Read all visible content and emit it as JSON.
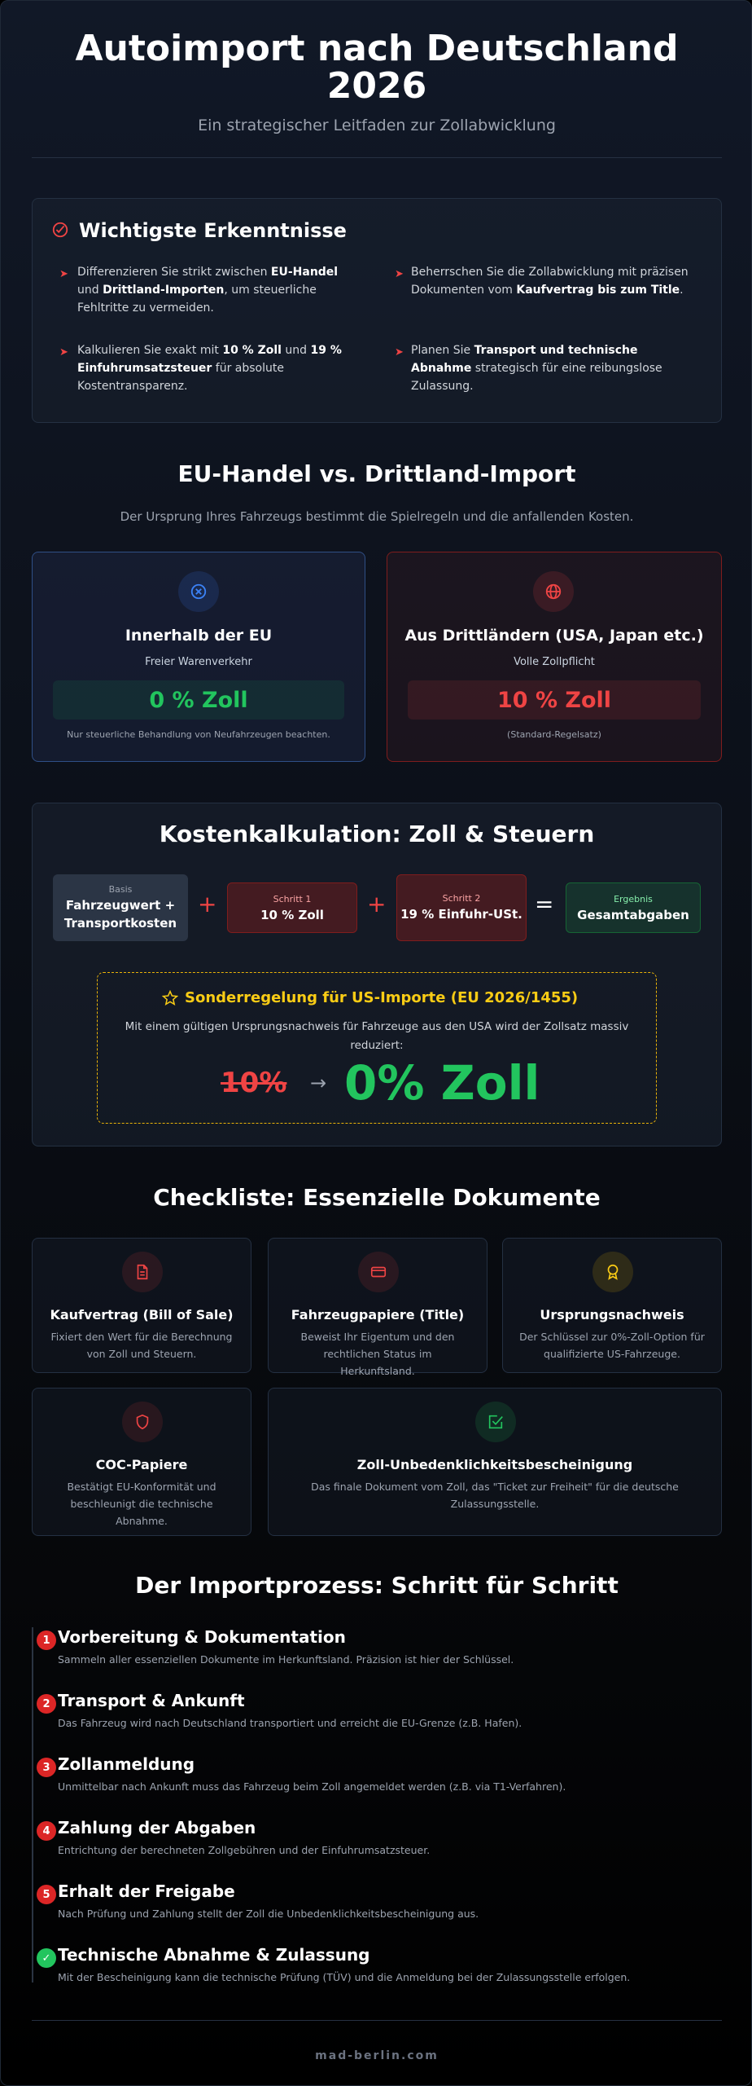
{
  "header": {
    "title_line1": "Autoimport nach Deutschland",
    "title_line2": "2026",
    "subtitle": "Ein strategischer Leitfaden zur Zollabwicklung"
  },
  "key_findings": {
    "title": "Wichtigste Erkenntnisse",
    "items": [
      {
        "pre": "Differenzieren Sie strikt zwischen ",
        "b1": "EU-Handel",
        "mid": " und ",
        "b2": "Drittland-Importen",
        "post": ", um steuerliche Fehltritte zu vermeiden."
      },
      {
        "pre": "Beherrschen Sie die Zollabwicklung mit präzisen Dokumenten vom ",
        "b1": "Kaufvertrag bis zum Title",
        "mid": "",
        "b2": "",
        "post": "."
      },
      {
        "pre": "Kalkulieren Sie exakt mit ",
        "b1": "10 % Zoll",
        "mid": " und ",
        "b2": "19 % Einfuhrumsatzsteuer",
        "post": " für absolute Kostentransparenz."
      },
      {
        "pre": "Planen Sie ",
        "b1": "Transport und technische Abnahme",
        "mid": "",
        "b2": "",
        "post": " strategisch für eine reibungslose Zulassung."
      }
    ]
  },
  "comparison": {
    "title": "EU-Handel vs. Drittland-Import",
    "subtitle": "Der Ursprung Ihres Fahrzeugs bestimmt die Spielregeln und die anfallenden Kosten.",
    "eu": {
      "title": "Innerhalb der EU",
      "sub": "Freier Warenverkehr",
      "rate": "0 % Zoll",
      "note": "Nur steuerliche Behandlung von Neufahrzeugen beachten.",
      "icon": "x-circle-icon"
    },
    "third": {
      "title": "Aus Drittländern (USA, Japan etc.)",
      "sub": "Volle Zollpflicht",
      "rate": "10 % Zoll",
      "note": "(Standard-Regelsatz)",
      "icon": "globe-icon"
    }
  },
  "calculation": {
    "title": "Kostenkalkulation: Zoll & Steuern",
    "base": {
      "label": "Basis",
      "value": "Fahrzeugwert + Transportkosten"
    },
    "step1": {
      "label": "Schritt 1",
      "value": "10 % Zoll"
    },
    "step2": {
      "label": "Schritt 2",
      "value": "19 % Einfuhr-USt."
    },
    "result": {
      "label": "Ergebnis",
      "value": "Gesamtabgaben"
    },
    "plus": "+",
    "equals": "=",
    "special": {
      "title": "Sonderregelung für US-Importe (EU 2026/1455)",
      "text": "Mit einem gültigen Ursprungsnachweis für Fahrzeuge aus den USA wird der Zollsatz massiv reduziert:",
      "old": "10%",
      "arrow": "→",
      "new": "0% Zoll"
    }
  },
  "checklist": {
    "title": "Checkliste: Essenzielle Dokumente",
    "docs": [
      {
        "title": "Kaufvertrag (Bill of Sale)",
        "desc": "Fixiert den Wert für die Berechnung von Zoll und Steuern.",
        "icon": "document-icon"
      },
      {
        "title": "Fahrzeugpapiere (Title)",
        "desc": "Beweist Ihr Eigentum und den rechtlichen Status im Herkunftsland.",
        "icon": "card-icon"
      },
      {
        "title": "Ursprungsnachweis",
        "desc": "Der Schlüssel zur 0%-Zoll-Option für qualifizierte US-Fahrzeuge.",
        "icon": "award-icon"
      },
      {
        "title": "COC-Papiere",
        "desc": "Bestätigt EU-Konformität und beschleunigt die technische Abnahme.",
        "icon": "shield-icon"
      },
      {
        "title": "Zoll-Unbedenklichkeitsbescheinigung",
        "desc": "Das finale Dokument vom Zoll, das \"Ticket zur Freiheit\" für die deutsche Zulassungsstelle.",
        "icon": "check-square-icon"
      }
    ]
  },
  "process": {
    "title": "Der Importprozess: Schritt für Schritt",
    "steps": [
      {
        "num": "1",
        "title": "Vorbereitung & Dokumentation",
        "desc": "Sammeln aller essenziellen Dokumente im Herkunftsland. Präzision ist hier der Schlüssel."
      },
      {
        "num": "2",
        "title": "Transport & Ankunft",
        "desc": "Das Fahrzeug wird nach Deutschland transportiert und erreicht die EU-Grenze (z.B. Hafen)."
      },
      {
        "num": "3",
        "title": "Zollanmeldung",
        "desc": "Unmittelbar nach Ankunft muss das Fahrzeug beim Zoll angemeldet werden (z.B. via T1-Verfahren)."
      },
      {
        "num": "4",
        "title": "Zahlung der Abgaben",
        "desc": "Entrichtung der berechneten Zollgebühren und der Einfuhrumsatzsteuer."
      },
      {
        "num": "5",
        "title": "Erhalt der Freigabe",
        "desc": "Nach Prüfung und Zahlung stellt der Zoll die Unbedenklichkeitsbescheinigung aus."
      },
      {
        "num": "✓",
        "title": "Technische Abnahme & Zulassung",
        "desc": "Mit der Bescheinigung kann die technische Prüfung (TÜV) und die Anmeldung bei der Zulassungsstelle erfolgen."
      }
    ]
  },
  "footer": {
    "text": "mad-berlin.com"
  },
  "colors": {
    "accent_red": "#ef4444",
    "accent_green": "#22c55e",
    "accent_blue": "#3b82f6",
    "accent_gold": "#facc15"
  }
}
